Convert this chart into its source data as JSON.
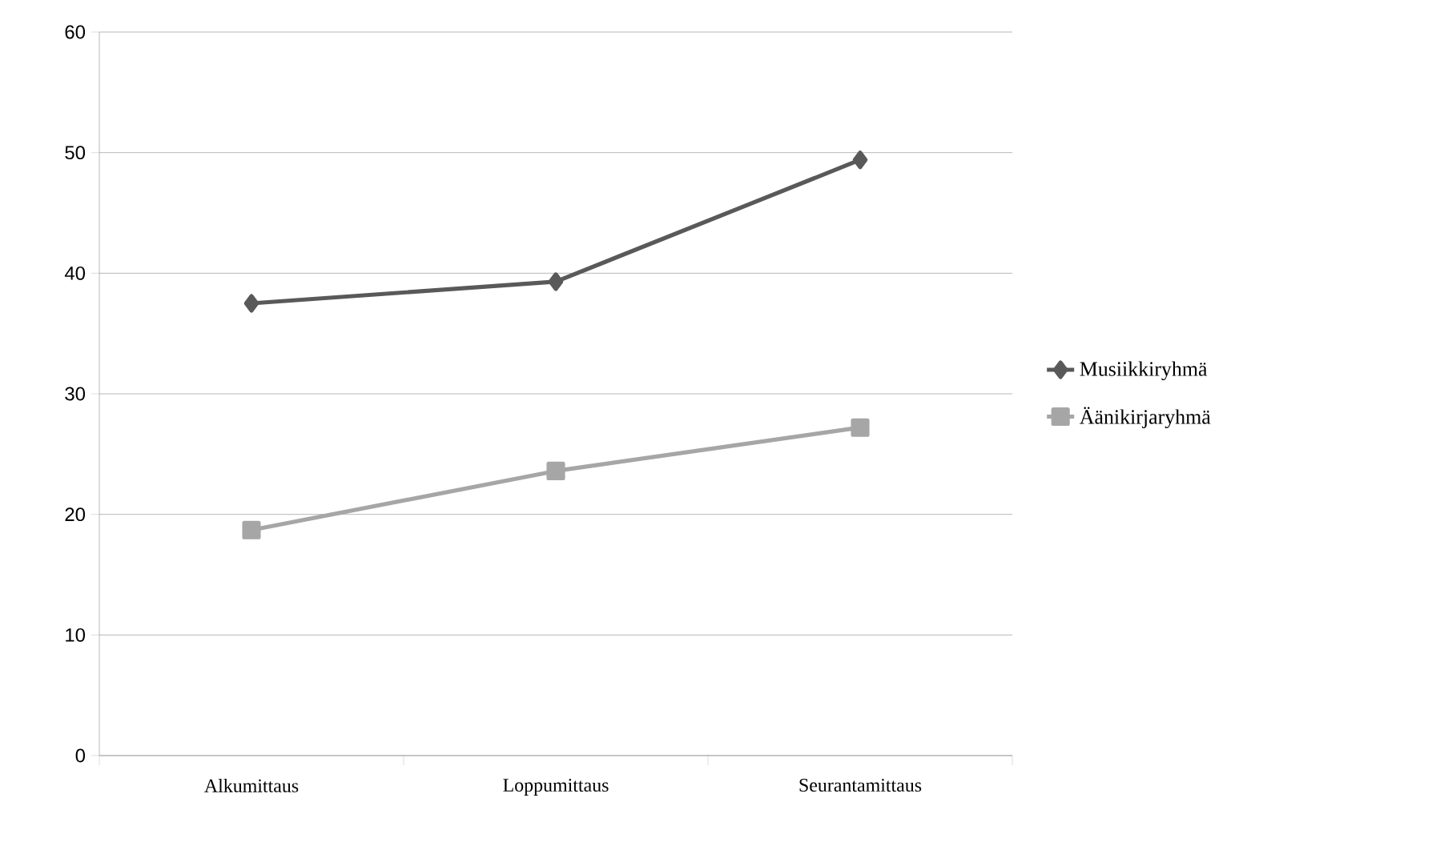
{
  "chart_data": {
    "type": "line",
    "categories": [
      "Alkumittaus",
      "Loppumittaus",
      "Seurantamittaus"
    ],
    "series": [
      {
        "name": "Musiikkiryhmä",
        "color": "#595959",
        "marker": "diamond",
        "values": [
          37.5,
          39.3,
          49.4
        ]
      },
      {
        "name": "Äänikirjaryhmä",
        "color": "#a6a6a6",
        "marker": "square",
        "values": [
          18.7,
          23.6,
          27.2
        ]
      }
    ],
    "ylim": [
      0,
      60
    ],
    "yticks": [
      0,
      10,
      20,
      30,
      40,
      50,
      60
    ],
    "grid": "y",
    "legend": "right"
  }
}
